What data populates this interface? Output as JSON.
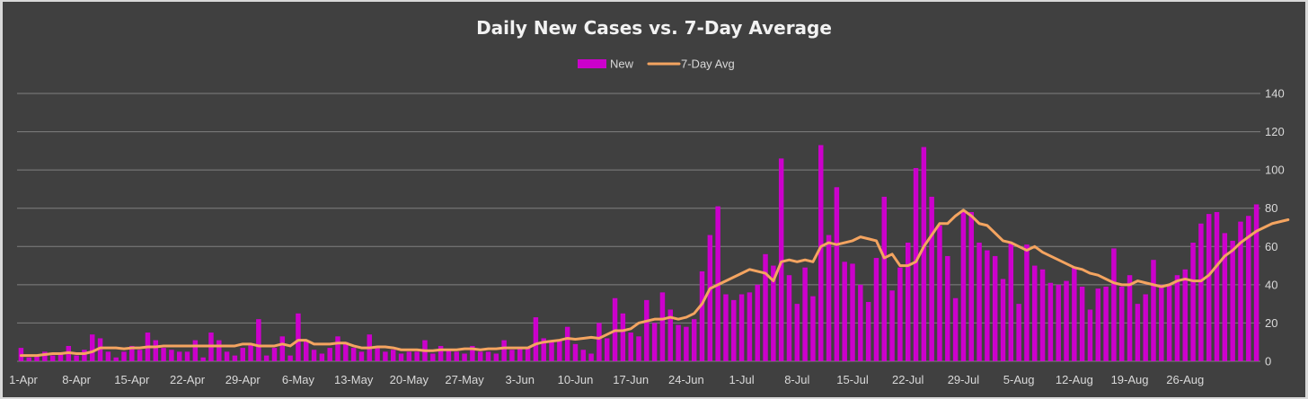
{
  "chart_data": {
    "type": "bar",
    "title": "Daily New Cases vs. 7-Day Average",
    "legend_position": "top",
    "grid": true,
    "ylim": [
      0,
      140
    ],
    "y_ticks": [
      0,
      20,
      40,
      60,
      80,
      100,
      120,
      140
    ],
    "x_tick_labels": [
      "1-Apr",
      "8-Apr",
      "15-Apr",
      "22-Apr",
      "29-Apr",
      "6-May",
      "13-May",
      "20-May",
      "27-May",
      "3-Jun",
      "10-Jun",
      "17-Jun",
      "24-Jun",
      "1-Jul",
      "8-Jul",
      "15-Jul",
      "22-Jul",
      "29-Jul",
      "5-Aug",
      "12-Aug",
      "19-Aug",
      "26-Aug"
    ],
    "colors": {
      "bar": "#cc00cc",
      "line": "#f4a460",
      "background": "#404040",
      "frame": "#d9d9d9"
    },
    "series": [
      {
        "name": "New",
        "kind": "bar",
        "values": [
          7,
          2,
          3,
          5,
          3,
          4,
          8,
          3,
          6,
          14,
          12,
          5,
          2,
          5,
          8,
          6,
          15,
          11,
          7,
          6,
          5,
          5,
          11,
          2,
          15,
          11,
          5,
          3,
          7,
          9,
          22,
          3,
          7,
          13,
          3,
          25,
          11,
          6,
          4,
          7,
          13,
          10,
          7,
          5,
          14,
          7,
          5,
          6,
          4,
          5,
          5,
          11,
          4,
          8,
          6,
          5,
          4,
          8,
          5,
          5,
          4,
          11,
          6,
          7,
          7,
          23,
          12,
          10,
          11,
          18,
          9,
          6,
          4,
          20,
          12,
          33,
          25,
          15,
          13,
          32,
          20,
          36,
          27,
          19,
          18,
          22,
          47,
          66,
          81,
          35,
          32,
          35,
          36,
          40,
          56,
          50,
          106,
          45,
          30,
          49,
          34,
          113,
          66,
          91,
          52,
          51,
          40,
          31,
          54,
          86,
          37,
          49,
          62,
          101,
          112,
          86,
          71,
          55,
          33,
          78,
          78,
          62,
          58,
          55,
          43,
          62,
          30,
          61,
          50,
          48,
          41,
          40,
          42,
          49,
          39,
          27,
          38,
          39,
          59,
          39,
          45,
          30,
          35,
          53,
          40,
          40,
          45,
          48,
          62,
          72,
          77,
          78,
          67,
          63,
          73,
          76,
          82
        ]
      },
      {
        "name": "7-Day Avg",
        "kind": "line",
        "values": [
          3,
          3,
          3,
          3.5,
          4,
          4,
          4.5,
          4,
          4,
          5,
          7,
          7,
          7,
          6.5,
          7,
          7,
          7.5,
          7.5,
          8,
          8,
          8,
          8,
          8,
          8,
          8,
          8,
          8,
          8,
          9,
          9,
          8,
          8,
          8,
          9,
          8,
          11,
          11,
          9,
          9,
          9,
          9.5,
          9.5,
          8,
          7,
          7,
          7.5,
          7.5,
          7,
          6,
          6,
          6,
          5.5,
          5.5,
          6,
          6,
          6,
          6.5,
          6.5,
          6,
          6.5,
          6.5,
          7,
          7,
          7,
          7,
          9,
          10,
          10.5,
          11,
          12,
          11.5,
          12,
          12.5,
          12,
          14,
          16,
          16,
          17,
          20,
          21,
          22,
          22,
          23,
          22,
          23,
          25,
          30,
          38,
          40,
          42,
          44,
          46,
          48,
          47,
          46,
          42,
          52,
          53,
          52,
          53,
          52,
          60,
          62,
          61,
          62,
          63,
          65,
          64,
          63,
          54,
          56,
          50,
          50,
          52,
          60,
          66,
          72,
          72,
          76,
          79,
          76,
          72,
          71,
          67,
          63,
          62,
          60,
          58,
          60,
          57,
          55,
          53,
          51,
          49,
          48,
          46,
          45,
          43,
          41,
          40,
          40,
          42,
          41,
          40,
          39,
          40,
          42,
          43,
          42,
          42,
          45,
          50,
          55,
          58,
          62,
          65,
          68,
          70,
          72,
          73,
          74
        ]
      }
    ]
  }
}
